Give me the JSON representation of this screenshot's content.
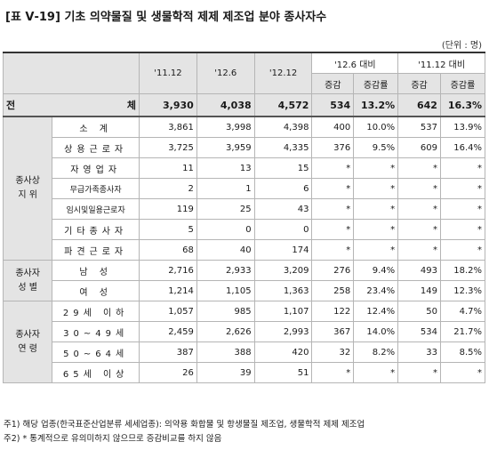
{
  "title": "[표 Ⅴ-19] 기초 의약물질 및 생물학적 제제 제조업 분야 종사자수",
  "unit": "(단위 : 명)",
  "header": {
    "c1": "'11.12",
    "c2": "'12.6",
    "c3": "'12.12",
    "g1": "'12.6 대비",
    "g2": "'11.12 대비",
    "inc": "증감",
    "rate": "증감률"
  },
  "total": {
    "label_a": "전",
    "label_b": "체",
    "v": [
      "3,930",
      "4,038",
      "4,572",
      "534",
      "13.2%",
      "642",
      "16.3%"
    ]
  },
  "groups": {
    "status": "종사상\n지 위",
    "gender": "종사자\n성 별",
    "age": "종사자\n연 령"
  },
  "rows": [
    {
      "label": "소 계",
      "v": [
        "3,861",
        "3,998",
        "4,398",
        "400",
        "10.0%",
        "537",
        "13.9%"
      ]
    },
    {
      "label": "상용근로자",
      "v": [
        "3,725",
        "3,959",
        "4,335",
        "376",
        "9.5%",
        "609",
        "16.4%"
      ]
    },
    {
      "label": "자영업자",
      "v": [
        "11",
        "13",
        "15",
        "*",
        "*",
        "*",
        "*"
      ]
    },
    {
      "label": "무급가족종사자",
      "v": [
        "2",
        "1",
        "6",
        "*",
        "*",
        "*",
        "*"
      ]
    },
    {
      "label": "임시및일용근로자",
      "v": [
        "119",
        "25",
        "43",
        "*",
        "*",
        "*",
        "*"
      ]
    },
    {
      "label": "기타종사자",
      "v": [
        "5",
        "0",
        "0",
        "*",
        "*",
        "*",
        "*"
      ]
    },
    {
      "label": "파견근로자",
      "v": [
        "68",
        "40",
        "174",
        "*",
        "*",
        "*",
        "*"
      ]
    },
    {
      "label": "남 성",
      "v": [
        "2,716",
        "2,933",
        "3,209",
        "276",
        "9.4%",
        "493",
        "18.2%"
      ]
    },
    {
      "label": "여 성",
      "v": [
        "1,214",
        "1,105",
        "1,363",
        "258",
        "23.4%",
        "149",
        "12.3%"
      ]
    },
    {
      "label": "29세 이하",
      "v": [
        "1,057",
        "985",
        "1,107",
        "122",
        "12.4%",
        "50",
        "4.7%"
      ]
    },
    {
      "label": "30~49세",
      "v": [
        "2,459",
        "2,626",
        "2,993",
        "367",
        "14.0%",
        "534",
        "21.7%"
      ]
    },
    {
      "label": "50~64세",
      "v": [
        "387",
        "388",
        "420",
        "32",
        "8.2%",
        "33",
        "8.5%"
      ]
    },
    {
      "label": "65세 이상",
      "v": [
        "26",
        "39",
        "51",
        "*",
        "*",
        "*",
        "*"
      ]
    }
  ],
  "notes": [
    "주1) 해당 업종(한국표준산업분류 세세업종): 의약용 화합물 및 항생물질 제조업, 생물학적 제제 제조업",
    "주2) * 통계적으로 유의미하지 않으므로 증감비교를 하지 않음"
  ]
}
